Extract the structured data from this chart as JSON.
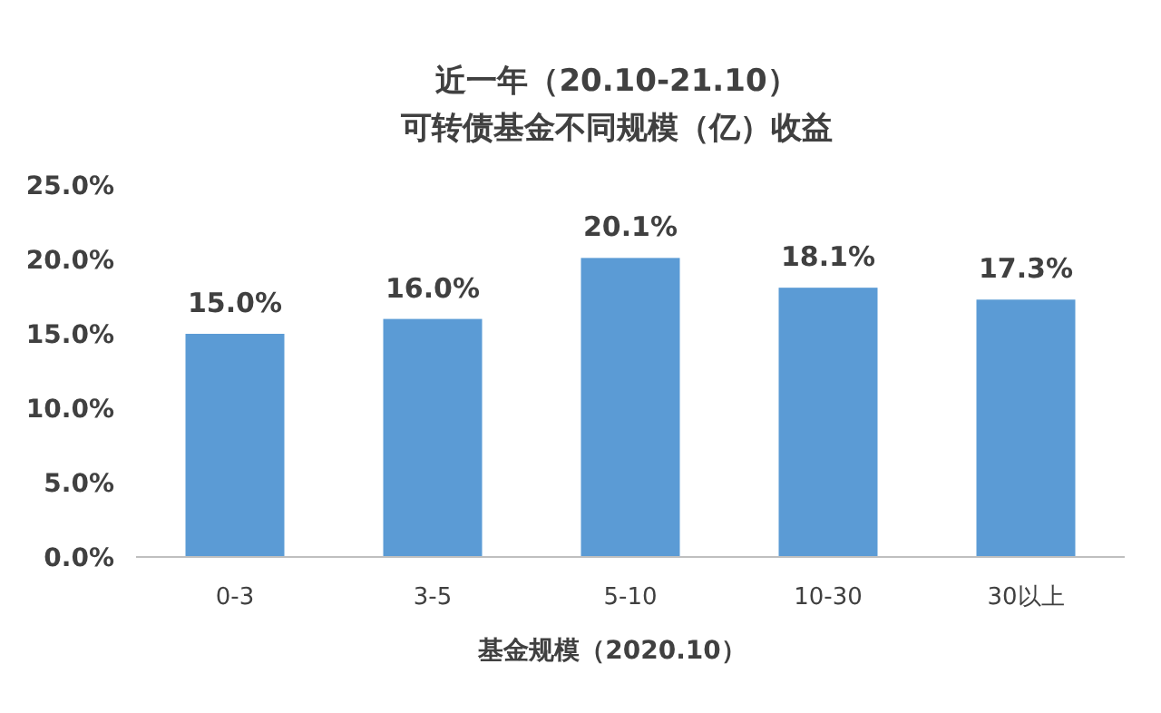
{
  "chart_data": {
    "type": "bar",
    "title": "近一年（20.10-21.10）",
    "subtitle": "可转债基金不同规模（亿）收益",
    "xlabel": "基金规模（2020.10）",
    "categories": [
      "0-3",
      "3-5",
      "5-10",
      "10-30",
      "30以上"
    ],
    "values": [
      15.0,
      16.0,
      20.1,
      18.1,
      17.3
    ],
    "value_labels": [
      "15.0%",
      "16.0%",
      "20.1%",
      "18.1%",
      "17.3%"
    ],
    "color": "#5b9bd5",
    "ylim": [
      0,
      25
    ],
    "yticks": [
      {
        "value": 0,
        "label": "0.0%"
      },
      {
        "value": 5,
        "label": "5.0%"
      },
      {
        "value": 10,
        "label": "10.0%"
      },
      {
        "value": 15,
        "label": "15.0%"
      },
      {
        "value": 20,
        "label": "20.0%"
      },
      {
        "value": 25,
        "label": "25.0%"
      }
    ]
  }
}
